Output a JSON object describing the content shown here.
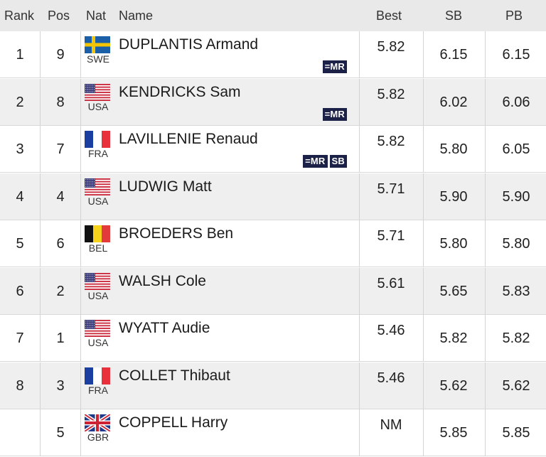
{
  "headers": {
    "rank": "Rank",
    "pos": "Pos",
    "nat": "Nat",
    "name": "Name",
    "best": "Best",
    "sb": "SB",
    "pb": "PB"
  },
  "rows": [
    {
      "rank": "1",
      "pos": "9",
      "nat": "SWE",
      "name": "DUPLANTIS Armand",
      "best": "5.82",
      "sb": "6.15",
      "pb": "6.15",
      "badges": [
        "=MR"
      ],
      "flag": "swe-flag-icon"
    },
    {
      "rank": "2",
      "pos": "8",
      "nat": "USA",
      "name": "KENDRICKS Sam",
      "best": "5.82",
      "sb": "6.02",
      "pb": "6.06",
      "badges": [
        "=MR"
      ],
      "flag": "usa-flag-icon"
    },
    {
      "rank": "3",
      "pos": "7",
      "nat": "FRA",
      "name": "LAVILLENIE Renaud",
      "best": "5.82",
      "sb": "5.80",
      "pb": "6.05",
      "badges": [
        "=MR",
        "SB"
      ],
      "flag": "fra-flag-icon"
    },
    {
      "rank": "4",
      "pos": "4",
      "nat": "USA",
      "name": "LUDWIG Matt",
      "best": "5.71",
      "sb": "5.90",
      "pb": "5.90",
      "badges": [],
      "flag": "usa-flag-icon"
    },
    {
      "rank": "5",
      "pos": "6",
      "nat": "BEL",
      "name": "BROEDERS Ben",
      "best": "5.71",
      "sb": "5.80",
      "pb": "5.80",
      "badges": [],
      "flag": "bel-flag-icon"
    },
    {
      "rank": "6",
      "pos": "2",
      "nat": "USA",
      "name": "WALSH Cole",
      "best": "5.61",
      "sb": "5.65",
      "pb": "5.83",
      "badges": [],
      "flag": "usa-flag-icon"
    },
    {
      "rank": "7",
      "pos": "1",
      "nat": "USA",
      "name": "WYATT Audie",
      "best": "5.46",
      "sb": "5.82",
      "pb": "5.82",
      "badges": [],
      "flag": "usa-flag-icon"
    },
    {
      "rank": "8",
      "pos": "3",
      "nat": "FRA",
      "name": "COLLET Thibaut",
      "best": "5.46",
      "sb": "5.62",
      "pb": "5.62",
      "badges": [],
      "flag": "fra-flag-icon"
    },
    {
      "rank": "",
      "pos": "5",
      "nat": "GBR",
      "name": "COPPELL Harry",
      "best": "NM",
      "sb": "5.85",
      "pb": "5.85",
      "badges": [],
      "flag": "gbr-flag-icon"
    }
  ],
  "colors": {
    "header_bg": "#e9e9e9",
    "row_alt_bg": "#efefef",
    "badge_bg": "#1c2147"
  }
}
